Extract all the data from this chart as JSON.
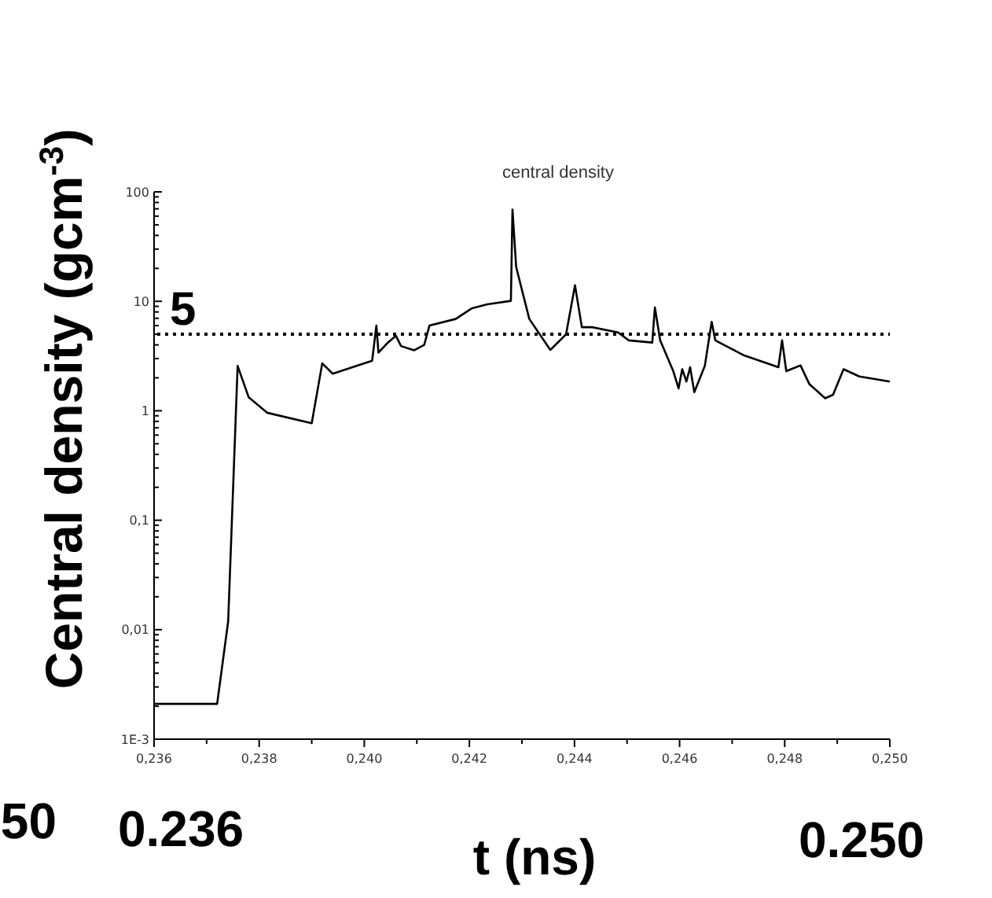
{
  "chart_data": {
    "type": "line",
    "title": "central density",
    "xlabel": "t (ns)",
    "ylabel": "Central density (gcm$^{-3}$)",
    "log": "y",
    "grid": false,
    "marker": "none",
    "line_style": "solid",
    "xlim": [
      0.236,
      0.25
    ],
    "xticks": [
      {
        "value": 0.236,
        "label": "0,236"
      },
      {
        "value": 0.237,
        "label": null
      },
      {
        "value": 0.238,
        "label": "0,238"
      },
      {
        "value": 0.239,
        "label": null
      },
      {
        "value": 0.24,
        "label": "0,240"
      },
      {
        "value": 0.241,
        "label": null
      },
      {
        "value": 0.242,
        "label": "0,242"
      },
      {
        "value": 0.243,
        "label": null
      },
      {
        "value": 0.244,
        "label": "0,244"
      },
      {
        "value": 0.245,
        "label": null
      },
      {
        "value": 0.246,
        "label": "0,246"
      },
      {
        "value": 0.247,
        "label": null
      },
      {
        "value": 0.248,
        "label": "0,248"
      },
      {
        "value": 0.249,
        "label": null
      },
      {
        "value": 0.25,
        "label": "0,250"
      }
    ],
    "ylim": [
      0.001,
      100
    ],
    "yticks": [
      {
        "value": 0.001,
        "label": "1E-3"
      },
      {
        "value": 0.002,
        "label": null
      },
      {
        "value": 0.003,
        "label": null
      },
      {
        "value": 0.004,
        "label": null
      },
      {
        "value": 0.005,
        "label": null
      },
      {
        "value": 0.006,
        "label": null
      },
      {
        "value": 0.007,
        "label": null
      },
      {
        "value": 0.008,
        "label": null
      },
      {
        "value": 0.009,
        "label": null
      },
      {
        "value": 0.01,
        "label": "0,01"
      },
      {
        "value": 0.02,
        "label": null
      },
      {
        "value": 0.03,
        "label": null
      },
      {
        "value": 0.04,
        "label": null
      },
      {
        "value": 0.05,
        "label": null
      },
      {
        "value": 0.06,
        "label": null
      },
      {
        "value": 0.07,
        "label": null
      },
      {
        "value": 0.08,
        "label": null
      },
      {
        "value": 0.09,
        "label": null
      },
      {
        "value": 0.1,
        "label": "0,1"
      },
      {
        "value": 0.2,
        "label": null
      },
      {
        "value": 0.3,
        "label": null
      },
      {
        "value": 0.4,
        "label": null
      },
      {
        "value": 0.5,
        "label": null
      },
      {
        "value": 0.6,
        "label": null
      },
      {
        "value": 0.7,
        "label": null
      },
      {
        "value": 0.8,
        "label": null
      },
      {
        "value": 0.9,
        "label": null
      },
      {
        "value": 1,
        "label": "1"
      },
      {
        "value": 2,
        "label": null
      },
      {
        "value": 3,
        "label": null
      },
      {
        "value": 4,
        "label": null
      },
      {
        "value": 5,
        "label": null
      },
      {
        "value": 6,
        "label": null
      },
      {
        "value": 7,
        "label": null
      },
      {
        "value": 8,
        "label": null
      },
      {
        "value": 9,
        "label": null
      },
      {
        "value": 10,
        "label": "10"
      },
      {
        "value": 20,
        "label": null
      },
      {
        "value": 30,
        "label": null
      },
      {
        "value": 40,
        "label": null
      },
      {
        "value": 50,
        "label": null
      },
      {
        "value": 60,
        "label": null
      },
      {
        "value": 70,
        "label": null
      },
      {
        "value": 80,
        "label": null
      },
      {
        "value": 90,
        "label": null
      },
      {
        "value": 100,
        "label": "100"
      }
    ],
    "ref_lines": [
      {
        "axis": "y",
        "value": 5,
        "label": "5",
        "color": "#000000",
        "line_style": "dotted"
      }
    ],
    "annotations": [
      "0.236",
      "0.250",
      "50"
    ],
    "series": [
      {
        "color": "#000000",
        "x": [
          0.236,
          0.2372,
          0.23741,
          0.23759,
          0.2378,
          0.23815,
          0.239,
          0.2392,
          0.2394,
          0.24015,
          0.24023,
          0.24027,
          0.24045,
          0.2406,
          0.2407,
          0.24095,
          0.24114,
          0.24124,
          0.24174,
          0.24204,
          0.24234,
          0.24279,
          0.24282,
          0.24289,
          0.24314,
          0.24354,
          0.24384,
          0.24401,
          0.24414,
          0.24434,
          0.24483,
          0.24503,
          0.24548,
          0.24553,
          0.24563,
          0.24588,
          0.24598,
          0.24605,
          0.24613,
          0.2462,
          0.24628,
          0.24648,
          0.24661,
          0.24668,
          0.24723,
          0.24788,
          0.24795,
          0.24803,
          0.2483,
          0.24847,
          0.24877,
          0.24892,
          0.24912,
          0.24942,
          0.25
        ],
        "values": [
          0.0021,
          0.0021,
          0.0119,
          2.57,
          1.33,
          0.96,
          0.77,
          2.71,
          2.18,
          2.87,
          6.0,
          3.4,
          4.2,
          4.85,
          3.9,
          3.57,
          4.0,
          6.0,
          6.9,
          8.6,
          9.4,
          10.1,
          69,
          20.6,
          6.9,
          3.6,
          5.0,
          14,
          5.8,
          5.8,
          5.2,
          4.4,
          4.2,
          8.8,
          4.4,
          2.3,
          1.6,
          2.4,
          1.85,
          2.5,
          1.48,
          2.57,
          6.5,
          4.4,
          3.2,
          2.5,
          4.4,
          2.3,
          2.6,
          1.75,
          1.3,
          1.4,
          2.4,
          2.06,
          1.85
        ]
      }
    ]
  }
}
